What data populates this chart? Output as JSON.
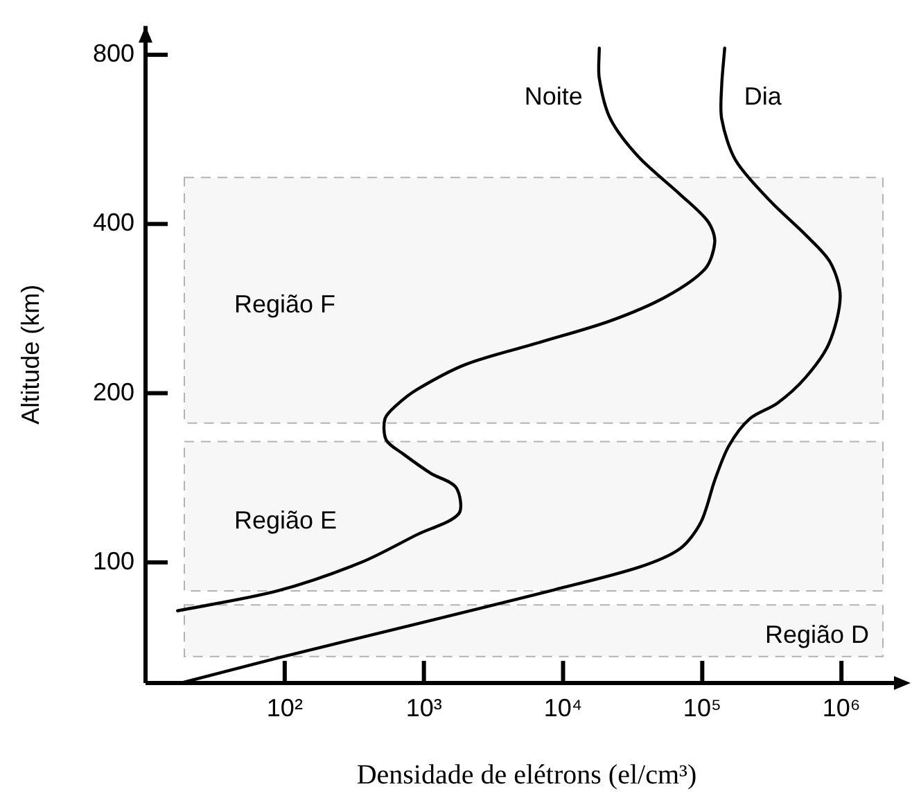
{
  "chart_data": {
    "type": "line",
    "xlabel": "Densidade de elétrons (el/cm³)",
    "ylabel": "Altitude (km)",
    "log": "xy",
    "xlim": [
      10,
      3000000
    ],
    "ylim": [
      61,
      900
    ],
    "xticks": [
      {
        "value": 100,
        "label": "10²"
      },
      {
        "value": 1000,
        "label": "10³"
      },
      {
        "value": 10000,
        "label": "10⁴"
      },
      {
        "value": 100000,
        "label": "10⁵"
      },
      {
        "value": 1000000,
        "label": "10⁶"
      }
    ],
    "yticks": [
      100,
      200,
      400,
      800
    ],
    "series": [
      {
        "name": "Noite",
        "color": "#000000",
        "x": [
          17,
          89,
          355,
          891,
          1778,
          1700,
          1122,
          708,
          537,
          525,
          630,
          891,
          1995,
          7080,
          21900,
          55000,
          105000,
          123000,
          110000,
          69000,
          35000,
          21900,
          18200,
          18200
        ],
        "values": [
          82,
          89,
          100,
          112,
          122,
          136,
          144,
          156,
          165,
          180,
          190,
          203,
          225,
          247,
          269,
          297,
          333,
          372,
          404,
          452,
          526,
          615,
          727,
          822
        ]
      },
      {
        "name": "Dia",
        "color": "#000000",
        "x": [
          18,
          89,
          891,
          8700,
          35000,
          69000,
          98000,
          123000,
          155000,
          219000,
          347000,
          550000,
          813000,
          980000,
          830000,
          550000,
          309000,
          174000,
          138000,
          138000,
          145000
        ],
        "values": [
          61,
          67.6,
          77.7,
          89.4,
          98,
          105.7,
          118,
          140,
          161,
          180,
          192,
          213,
          245,
          297,
          342,
          383,
          439,
          519,
          615,
          707,
          822
        ]
      }
    ],
    "bands": [
      {
        "axis": "y",
        "from": 177,
        "to": 484,
        "label": "Região F",
        "color": "#b3b3b3"
      },
      {
        "axis": "y",
        "from": 89,
        "to": 164,
        "label": "Região E",
        "color": "#b3b3b3"
      },
      {
        "axis": "y",
        "from": 68,
        "to": 84,
        "label": "Região D",
        "color": "#b3b3b3"
      }
    ],
    "marker": "none",
    "line_style": "solid",
    "grid": false,
    "legend": false
  }
}
